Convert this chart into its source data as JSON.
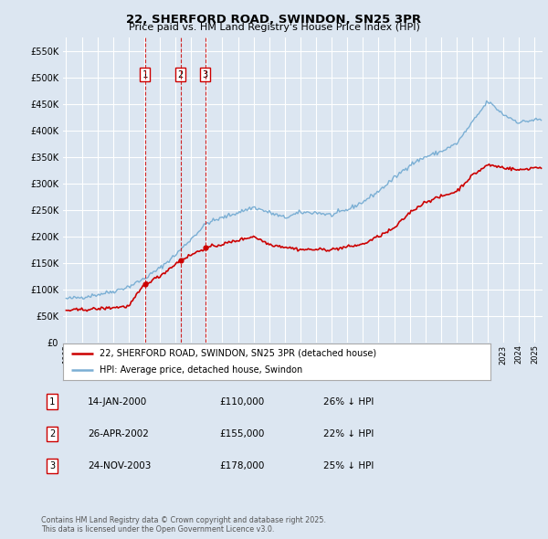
{
  "title": "22, SHERFORD ROAD, SWINDON, SN25 3PR",
  "subtitle": "Price paid vs. HM Land Registry's House Price Index (HPI)",
  "background_color": "#dce6f1",
  "plot_bg_color": "#dce6f1",
  "grid_color": "#ffffff",
  "hpi_color": "#7bafd4",
  "price_color": "#cc0000",
  "ylim": [
    0,
    575000
  ],
  "yticks": [
    0,
    50000,
    100000,
    150000,
    200000,
    250000,
    300000,
    350000,
    400000,
    450000,
    500000,
    550000
  ],
  "xlim_start": 1994.8,
  "xlim_end": 2025.5,
  "purchases": [
    {
      "date_val": 2000.04,
      "price": 110000,
      "label": "1"
    },
    {
      "date_val": 2002.32,
      "price": 155000,
      "label": "2"
    },
    {
      "date_val": 2003.9,
      "price": 178000,
      "label": "3"
    }
  ],
  "vline_dates": [
    2000.04,
    2002.32,
    2003.9
  ],
  "legend_entries": [
    "22, SHERFORD ROAD, SWINDON, SN25 3PR (detached house)",
    "HPI: Average price, detached house, Swindon"
  ],
  "table_rows": [
    {
      "num": "1",
      "date": "14-JAN-2000",
      "price": "£110,000",
      "pct": "26% ↓ HPI"
    },
    {
      "num": "2",
      "date": "26-APR-2002",
      "price": "£155,000",
      "pct": "22% ↓ HPI"
    },
    {
      "num": "3",
      "date": "24-NOV-2003",
      "price": "£178,000",
      "pct": "25% ↓ HPI"
    }
  ],
  "footnote": "Contains HM Land Registry data © Crown copyright and database right 2025.\nThis data is licensed under the Open Government Licence v3.0."
}
